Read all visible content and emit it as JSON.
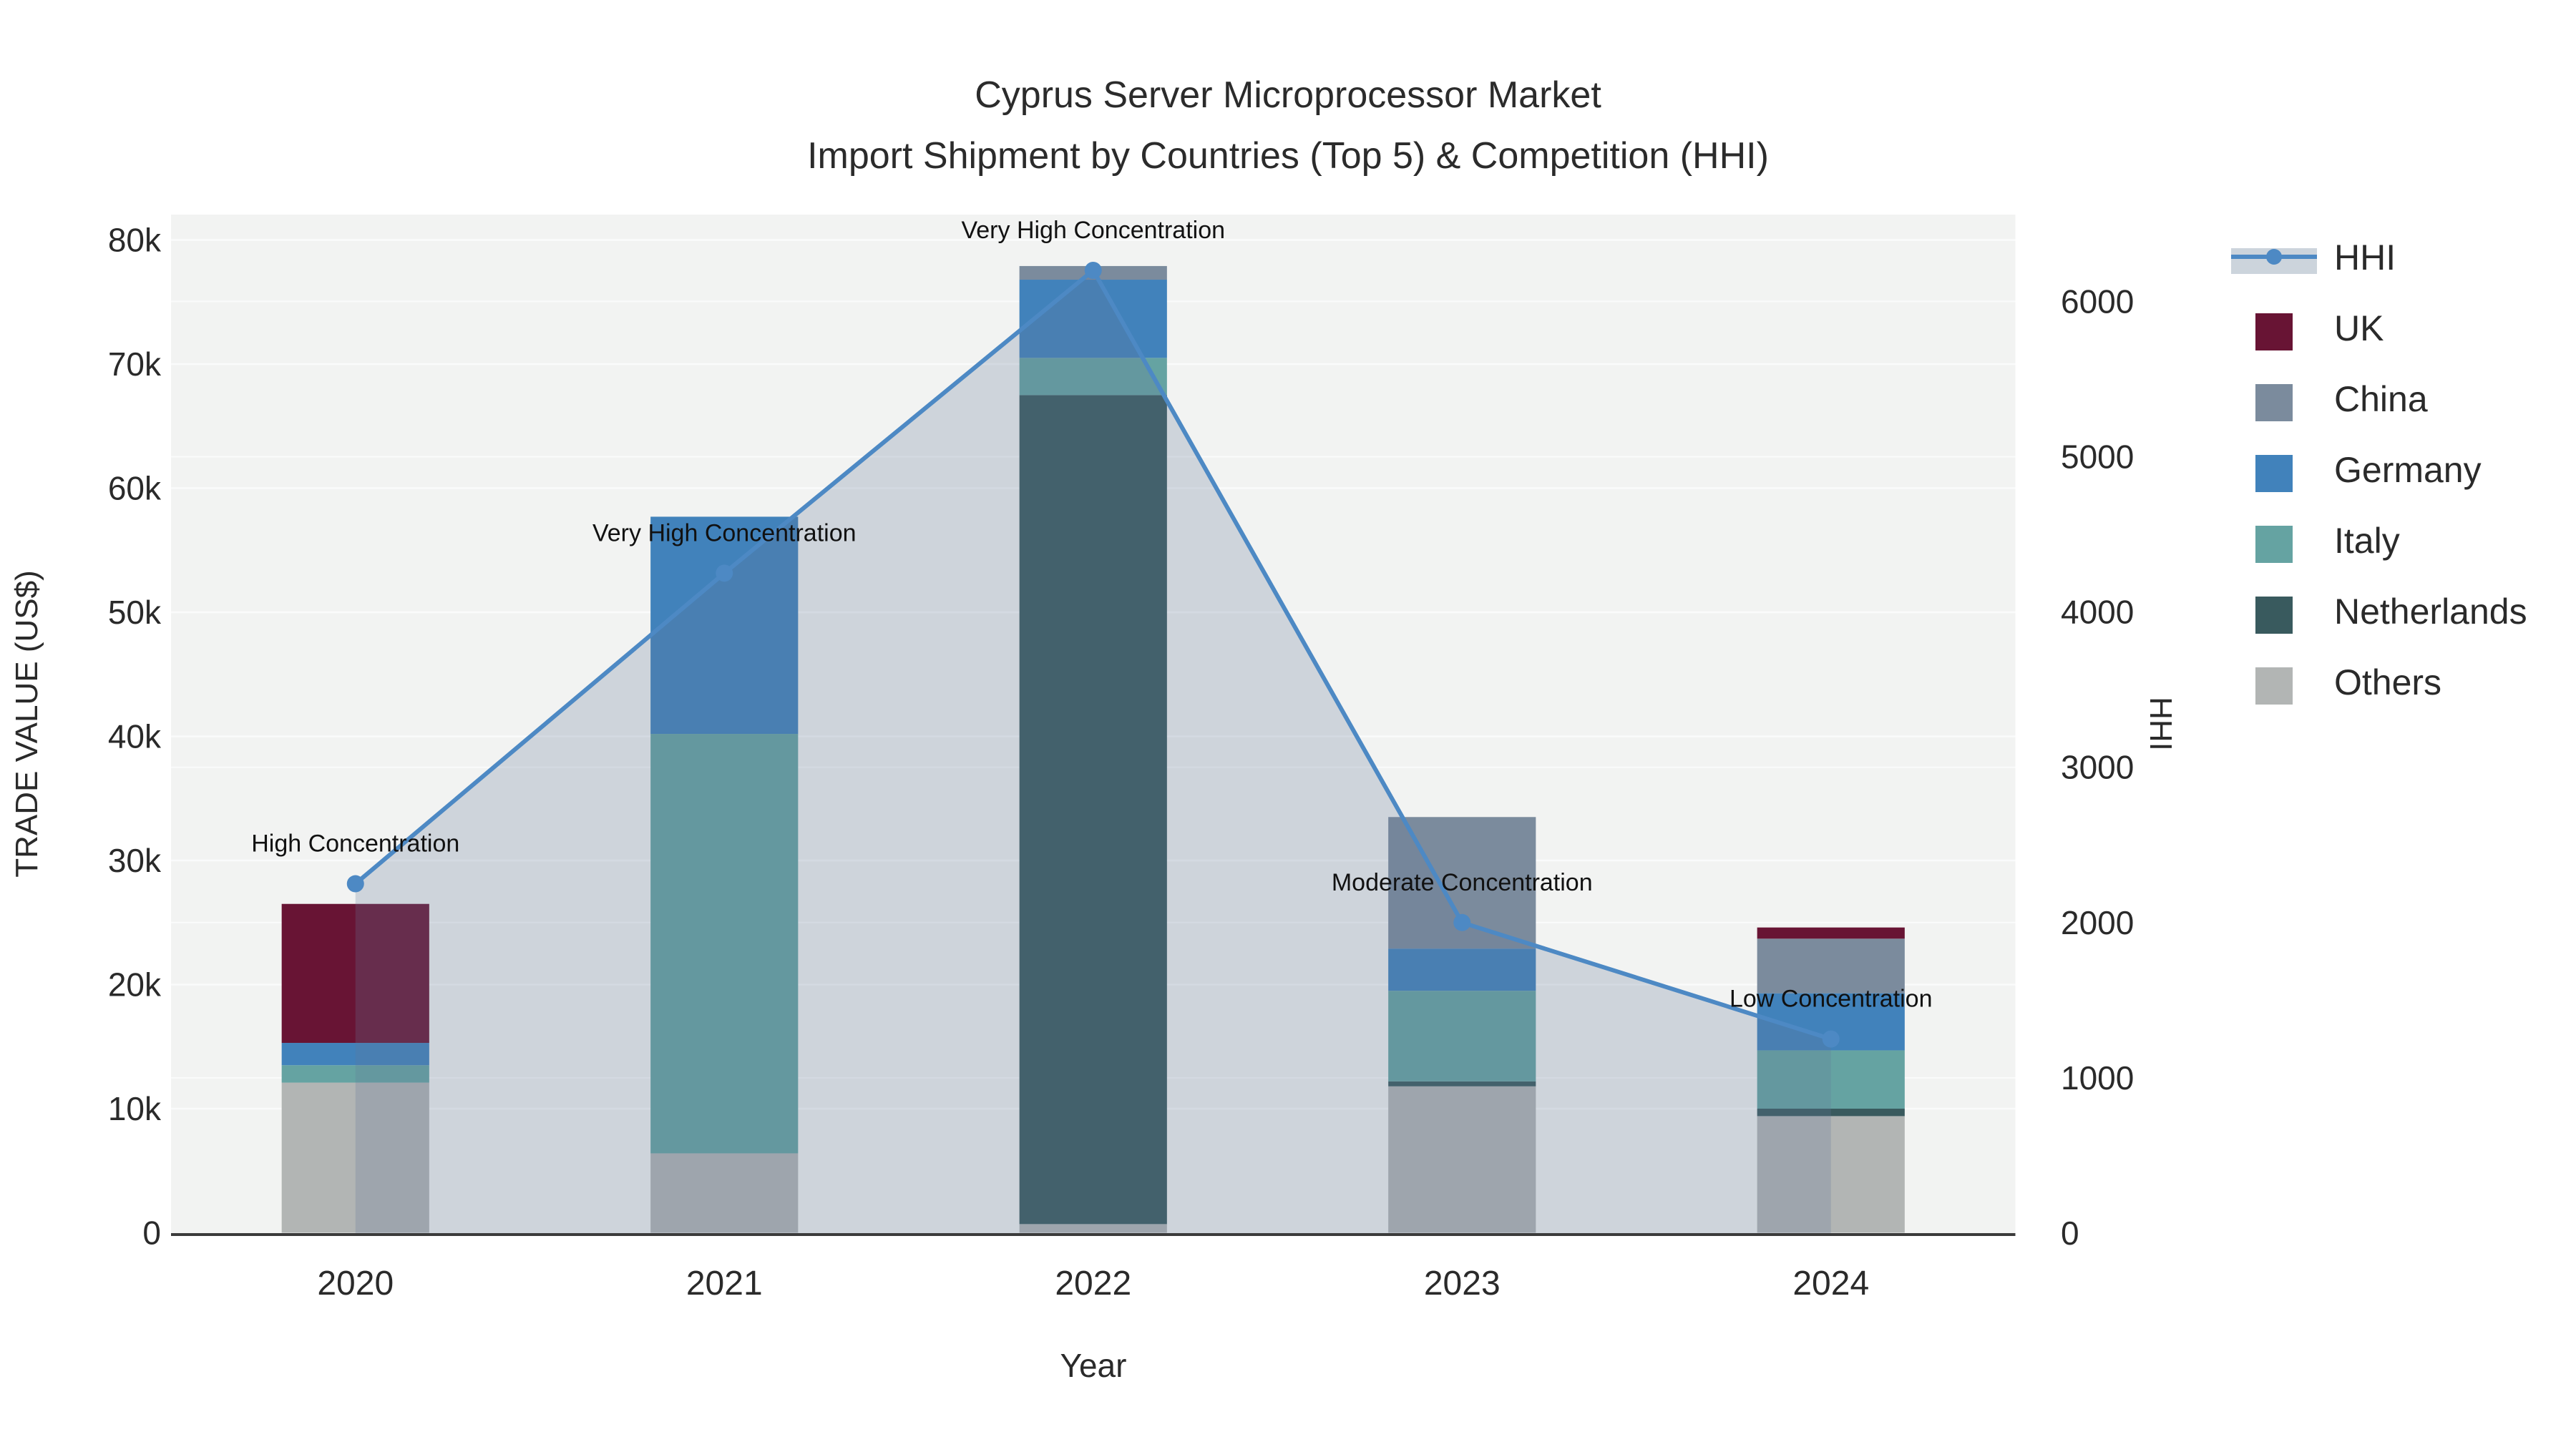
{
  "title": {
    "line1": "Cyprus Server Microprocessor Market",
    "line2": "Import Shipment by Countries (Top 5) & Competition (HHI)"
  },
  "axes": {
    "y_left": {
      "title": "TRADE VALUE (US$)",
      "ticks": [
        "0",
        "10k",
        "20k",
        "30k",
        "40k",
        "50k",
        "60k",
        "70k",
        "80k"
      ],
      "tick_values": [
        0,
        10000,
        20000,
        30000,
        40000,
        50000,
        60000,
        70000,
        80000
      ]
    },
    "y_right": {
      "title": "HHI",
      "ticks": [
        "0",
        "1000",
        "2000",
        "3000",
        "4000",
        "5000",
        "6000"
      ],
      "tick_values": [
        0,
        1000,
        2000,
        3000,
        4000,
        5000,
        6000
      ]
    },
    "x": {
      "title": "Year",
      "categories": [
        "2020",
        "2021",
        "2022",
        "2023",
        "2024"
      ]
    }
  },
  "legend": {
    "items": [
      {
        "label": "HHI",
        "type": "line",
        "color": "#4d89c4",
        "band_color": "#ccd4dc"
      },
      {
        "label": "UK",
        "type": "bar",
        "color": "#681434"
      },
      {
        "label": "China",
        "type": "bar",
        "color": "#7b8b9d"
      },
      {
        "label": "Germany",
        "type": "bar",
        "color": "#4182bb"
      },
      {
        "label": "Italy",
        "type": "bar",
        "color": "#65a3a2"
      },
      {
        "label": "Netherlands",
        "type": "bar",
        "color": "#395a5e"
      },
      {
        "label": "Others",
        "type": "bar",
        "color": "#b2b5b4"
      }
    ]
  },
  "annotations": [
    {
      "year": "2020",
      "text": "High Concentration"
    },
    {
      "year": "2021",
      "text": "Very High Concentration"
    },
    {
      "year": "2022",
      "text": "Very High Concentration"
    },
    {
      "year": "2023",
      "text": "Moderate Concentration"
    },
    {
      "year": "2024",
      "text": "Low Concentration"
    }
  ],
  "chart_data": {
    "type": "bar",
    "subtype": "stacked-bars-with-line-overlay",
    "categories": [
      "2020",
      "2021",
      "2022",
      "2023",
      "2024"
    ],
    "stack_order_bottom_to_top": [
      "Others",
      "Netherlands",
      "Italy",
      "Germany",
      "China",
      "UK"
    ],
    "series": [
      {
        "name": "Others",
        "axis": "left",
        "values": [
          12100,
          6400,
          700,
          11800,
          9400
        ]
      },
      {
        "name": "Netherlands",
        "axis": "left",
        "values": [
          0,
          0,
          66800,
          400,
          600
        ]
      },
      {
        "name": "Italy",
        "axis": "left",
        "values": [
          1400,
          33800,
          3000,
          7300,
          4700
        ]
      },
      {
        "name": "Germany",
        "axis": "left",
        "values": [
          1800,
          17500,
          6300,
          3400,
          4600
        ]
      },
      {
        "name": "China",
        "axis": "left",
        "values": [
          0,
          0,
          1100,
          10600,
          4400
        ]
      },
      {
        "name": "UK",
        "axis": "left",
        "values": [
          11200,
          0,
          0,
          0,
          900
        ]
      }
    ],
    "bar_totals": [
      26500,
      57700,
      77900,
      33500,
      24600
    ],
    "line_series": {
      "name": "HHI",
      "axis": "right",
      "values": [
        2250,
        4250,
        6200,
        2000,
        1250
      ],
      "fill": "tozeroy"
    },
    "title": "Cyprus Server Microprocessor Market — Import Shipment by Countries (Top 5) & Competition (HHI)",
    "xlabel": "Year",
    "ylabel_left": "TRADE VALUE (US$)",
    "ylabel_right": "HHI",
    "ylim_left": [
      0,
      82000
    ],
    "ylim_right": [
      0,
      6560
    ],
    "grid": true,
    "legend_position": "right",
    "colors": {
      "plot_bg": "#f2f3f2",
      "paper_bg": "#ffffff",
      "gridline": "#fafbfb",
      "axis_line": "#3b3b3b",
      "hhi_line": "#4d89c4",
      "hhi_fill": "rgba(100,120,150,0.25)",
      "text": "#2a2a2a"
    }
  }
}
